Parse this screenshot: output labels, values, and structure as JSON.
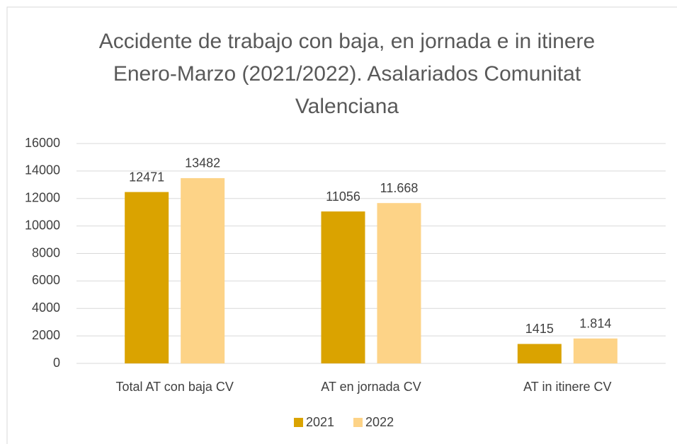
{
  "chart_data": {
    "type": "bar",
    "title": "Accidente de trabajo con baja, en jornada e in itinere Enero-Marzo (2021/2022). Asalariados Comunitat Valenciana",
    "categories": [
      "Total AT con baja CV",
      "AT en jornada CV",
      "AT in itinere CV"
    ],
    "series": [
      {
        "name": "2021",
        "color": "#daa300",
        "values": [
          12471,
          11056,
          1415
        ]
      },
      {
        "name": "2022",
        "color": "#fdd387",
        "values": [
          13482,
          11668,
          1814
        ],
        "value_labels": [
          "13482",
          "11.668",
          "1.814"
        ]
      }
    ],
    "ylim": [
      0,
      16000
    ],
    "yticks": [
      0,
      2000,
      4000,
      6000,
      8000,
      10000,
      12000,
      14000,
      16000
    ],
    "grid": true,
    "legend": "bottom"
  }
}
